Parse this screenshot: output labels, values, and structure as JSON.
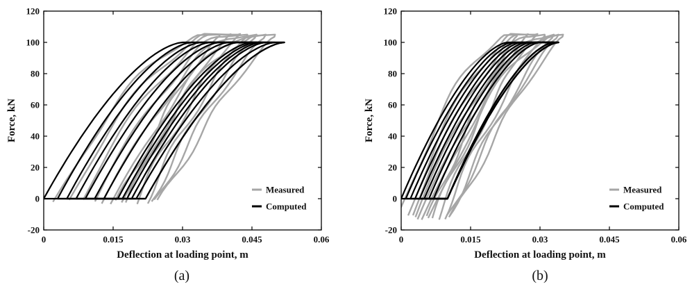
{
  "chart_data": [
    {
      "type": "line",
      "panel_label": "(a)",
      "xlabel": "Deflection at loading point, m",
      "ylabel": "Force, kN",
      "xlim": [
        0,
        0.06
      ],
      "ylim": [
        -20,
        120
      ],
      "xticks": [
        0,
        0.015,
        0.03,
        0.045,
        0.06
      ],
      "xtick_labels": [
        "0",
        "0.015",
        "0.03",
        "0.045",
        "0.06"
      ],
      "yticks": [
        -20,
        0,
        20,
        40,
        60,
        80,
        100,
        120
      ],
      "ytick_labels": [
        "-20",
        "0",
        "20",
        "40",
        "60",
        "80",
        "100",
        "120"
      ],
      "legend_position": "bottom-right",
      "series": [
        {
          "name": "Measured",
          "color": "#a6a6a6",
          "style": "hysteresis-loops",
          "loops": [
            {
              "x0": 0.002,
              "x_top": 0.033,
              "x_start_top": 0.038,
              "x_bottom_right": 0.016
            },
            {
              "x0": 0.005,
              "x_top": 0.035,
              "x_start_top": 0.04,
              "x_bottom_right": 0.018
            },
            {
              "x0": 0.008,
              "x_top": 0.037,
              "x_start_top": 0.042,
              "x_bottom_right": 0.02
            },
            {
              "x0": 0.011,
              "x_top": 0.039,
              "x_start_top": 0.044,
              "x_bottom_right": 0.022
            },
            {
              "x0": 0.013,
              "x_top": 0.041,
              "x_start_top": 0.046,
              "x_bottom_right": 0.023
            },
            {
              "x0": 0.015,
              "x_top": 0.043,
              "x_start_top": 0.048,
              "x_bottom_right": 0.024
            },
            {
              "x0": 0.017,
              "x_top": 0.045,
              "x_start_top": 0.05,
              "x_bottom_right": 0.025
            }
          ],
          "peak_force": 104
        },
        {
          "name": "Computed",
          "color": "#000000",
          "style": "hysteresis-loops",
          "loops": [
            {
              "x_left_bottom": 0.0,
              "x_top_left": 0.03,
              "x_top_right": 0.052,
              "x_bottom_right": 0.022
            },
            {
              "x_left_bottom": 0.003,
              "x_top_left": 0.032,
              "x_top_right": 0.052,
              "x_bottom_right": 0.022
            },
            {
              "x_left_bottom": 0.005,
              "x_top_left": 0.034,
              "x_top_right": 0.05,
              "x_bottom_right": 0.02
            },
            {
              "x_left_bottom": 0.007,
              "x_top_left": 0.036,
              "x_top_right": 0.048,
              "x_bottom_right": 0.019
            },
            {
              "x_left_bottom": 0.009,
              "x_top_left": 0.038,
              "x_top_right": 0.047,
              "x_bottom_right": 0.018
            },
            {
              "x_left_bottom": 0.011,
              "x_top_left": 0.04,
              "x_top_right": 0.046,
              "x_bottom_right": 0.017
            },
            {
              "x_left_bottom": 0.013,
              "x_top_left": 0.042,
              "x_top_right": 0.045,
              "x_bottom_right": 0.016
            }
          ],
          "max_force": 100,
          "min_force": 0
        }
      ]
    },
    {
      "type": "line",
      "panel_label": "(b)",
      "xlabel": "Deflection at loading point, m",
      "ylabel": "Force, kN",
      "xlim": [
        0,
        0.06
      ],
      "ylim": [
        -20,
        120
      ],
      "xticks": [
        0,
        0.015,
        0.03,
        0.045,
        0.06
      ],
      "xtick_labels": [
        "0",
        "0.015",
        "0.03",
        "0.045",
        "0.06"
      ],
      "yticks": [
        -20,
        0,
        20,
        40,
        60,
        80,
        100,
        120
      ],
      "ytick_labels": [
        "-20",
        "0",
        "20",
        "40",
        "60",
        "80",
        "100",
        "120"
      ],
      "legend_position": "bottom-right",
      "series": [
        {
          "name": "Measured",
          "color": "#a6a6a6",
          "style": "hysteresis-loops",
          "loops": [
            {
              "x0": -0.001,
              "x_top": 0.022,
              "x_bottom_right": 0.006
            },
            {
              "x0": 0.001,
              "x_top": 0.024,
              "x_bottom_right": 0.007
            },
            {
              "x0": 0.002,
              "x_top": 0.026,
              "x_bottom_right": 0.008
            },
            {
              "x0": 0.003,
              "x_top": 0.028,
              "x_bottom_right": 0.009
            },
            {
              "x0": 0.004,
              "x_top": 0.03,
              "x_bottom_right": 0.01
            },
            {
              "x0": 0.005,
              "x_top": 0.031,
              "x_bottom_right": 0.01
            },
            {
              "x0": 0.006,
              "x_top": 0.032,
              "x_bottom_right": 0.011
            }
          ],
          "peak_force": 104,
          "min_force": -12
        },
        {
          "name": "Computed",
          "color": "#000000",
          "style": "hysteresis-loops",
          "loops": [
            {
              "x_left_bottom": 0.0,
              "x_top_left": 0.023,
              "x_top_right": 0.033,
              "x_bottom_right": 0.01
            },
            {
              "x_left_bottom": 0.001,
              "x_top_left": 0.024,
              "x_top_right": 0.033,
              "x_bottom_right": 0.01
            },
            {
              "x_left_bottom": 0.002,
              "x_top_left": 0.025,
              "x_top_right": 0.033,
              "x_bottom_right": 0.01
            },
            {
              "x_left_bottom": 0.003,
              "x_top_left": 0.026,
              "x_top_right": 0.033,
              "x_bottom_right": 0.01
            },
            {
              "x_left_bottom": 0.004,
              "x_top_left": 0.027,
              "x_top_right": 0.034,
              "x_bottom_right": 0.01
            },
            {
              "x_left_bottom": 0.005,
              "x_top_left": 0.028,
              "x_top_right": 0.034,
              "x_bottom_right": 0.01
            },
            {
              "x_left_bottom": 0.006,
              "x_top_left": 0.029,
              "x_top_right": 0.034,
              "x_bottom_right": 0.01
            },
            {
              "x_left_bottom": 0.007,
              "x_top_left": 0.03,
              "x_top_right": 0.034,
              "x_bottom_right": 0.01
            }
          ],
          "max_force": 100,
          "min_force": 0
        }
      ]
    }
  ]
}
